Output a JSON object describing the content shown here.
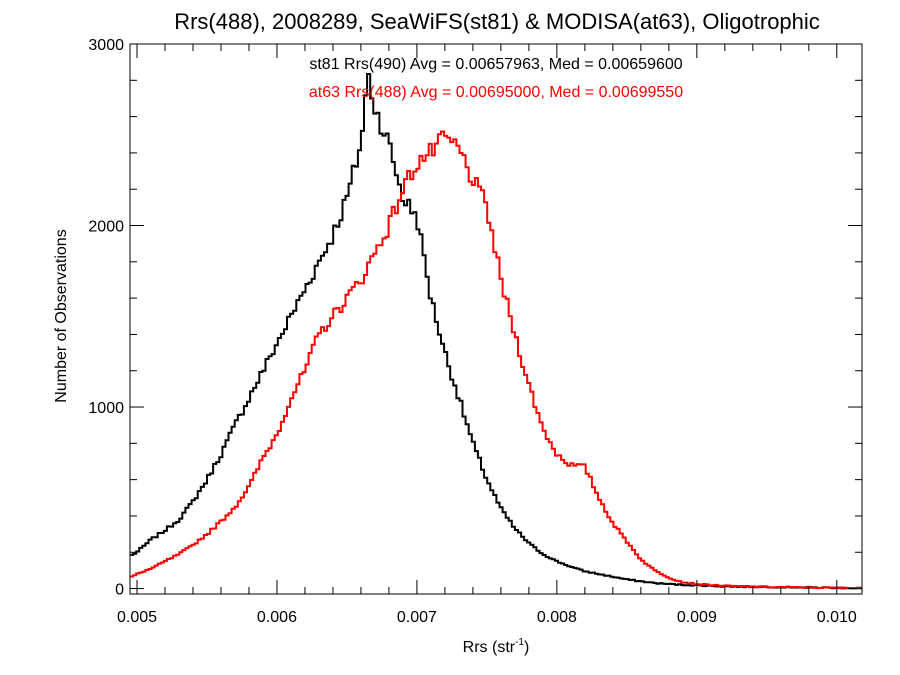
{
  "chart_data": {
    "type": "histogram-step",
    "title": "Rrs(488), 2008289, SeaWiFS(st81) & MODISA(at63), Oligotrophic",
    "xlabel_base": "Rrs (str",
    "xlabel_sup": "-1",
    "xlabel_close": ")",
    "ylabel": "Number of Observations",
    "xlim": [
      0.00495,
      0.01018
    ],
    "ylim": [
      -30,
      3000
    ],
    "xticks": [
      0.005,
      0.006,
      0.007,
      0.008,
      0.009,
      0.01
    ],
    "xtick_labels": [
      "0.005",
      "0.006",
      "0.007",
      "0.008",
      "0.009",
      "0.010"
    ],
    "yticks": [
      0,
      1000,
      2000,
      3000
    ],
    "ytick_labels": [
      "0",
      "1000",
      "2000",
      "3000"
    ],
    "x_minor_step": 0.0002,
    "y_minor_step": 200,
    "grid": false,
    "legend_placement": "top-center",
    "annotations": [
      {
        "text": "st81 Rrs(490) Avg = 0.00657963, Med = 0.00659600",
        "color": "#000000"
      },
      {
        "text": "at63 Rrs(488) Avg = 0.00695000, Med = 0.00699550",
        "color": "#ff0000"
      }
    ],
    "series": [
      {
        "color": "#000000",
        "points": [
          [
            0.00495,
            180
          ],
          [
            0.005,
            200
          ],
          [
            0.0051,
            270
          ],
          [
            0.0052,
            320
          ],
          [
            0.0053,
            380
          ],
          [
            0.0054,
            480
          ],
          [
            0.0055,
            600
          ],
          [
            0.0056,
            740
          ],
          [
            0.0057,
            900
          ],
          [
            0.0058,
            1050
          ],
          [
            0.0059,
            1200
          ],
          [
            0.006,
            1350
          ],
          [
            0.0061,
            1500
          ],
          [
            0.0062,
            1650
          ],
          [
            0.0063,
            1800
          ],
          [
            0.0064,
            1950
          ],
          [
            0.0065,
            2150
          ],
          [
            0.0066,
            2450
          ],
          [
            0.00665,
            2830
          ],
          [
            0.0067,
            2650
          ],
          [
            0.0068,
            2450
          ],
          [
            0.0069,
            2150
          ],
          [
            0.007,
            2050
          ],
          [
            0.0071,
            1600
          ],
          [
            0.0072,
            1300
          ],
          [
            0.0073,
            1050
          ],
          [
            0.0074,
            800
          ],
          [
            0.0075,
            600
          ],
          [
            0.0076,
            440
          ],
          [
            0.0077,
            330
          ],
          [
            0.0078,
            250
          ],
          [
            0.0079,
            190
          ],
          [
            0.008,
            150
          ],
          [
            0.0081,
            120
          ],
          [
            0.0082,
            95
          ],
          [
            0.0083,
            80
          ],
          [
            0.0084,
            65
          ],
          [
            0.0085,
            50
          ],
          [
            0.0086,
            40
          ],
          [
            0.0087,
            30
          ],
          [
            0.0088,
            25
          ],
          [
            0.0089,
            20
          ],
          [
            0.009,
            18
          ],
          [
            0.0092,
            12
          ],
          [
            0.0094,
            10
          ],
          [
            0.0096,
            8
          ],
          [
            0.0098,
            6
          ],
          [
            0.01,
            4
          ],
          [
            0.01018,
            3
          ]
        ]
      },
      {
        "color": "#ff0000",
        "points": [
          [
            0.00495,
            60
          ],
          [
            0.005,
            80
          ],
          [
            0.0051,
            110
          ],
          [
            0.0052,
            150
          ],
          [
            0.0053,
            190
          ],
          [
            0.0054,
            240
          ],
          [
            0.0055,
            300
          ],
          [
            0.0056,
            370
          ],
          [
            0.0057,
            450
          ],
          [
            0.0058,
            560
          ],
          [
            0.0059,
            720
          ],
          [
            0.006,
            850
          ],
          [
            0.0061,
            1050
          ],
          [
            0.0062,
            1200
          ],
          [
            0.0063,
            1400
          ],
          [
            0.0064,
            1500
          ],
          [
            0.0065,
            1600
          ],
          [
            0.0066,
            1700
          ],
          [
            0.0067,
            1850
          ],
          [
            0.0068,
            2000
          ],
          [
            0.0069,
            2200
          ],
          [
            0.007,
            2350
          ],
          [
            0.0071,
            2400
          ],
          [
            0.0072,
            2480
          ],
          [
            0.0073,
            2420
          ],
          [
            0.0074,
            2250
          ],
          [
            0.0075,
            2100
          ],
          [
            0.0076,
            1700
          ],
          [
            0.0077,
            1400
          ],
          [
            0.0078,
            1120
          ],
          [
            0.0079,
            880
          ],
          [
            0.008,
            740
          ],
          [
            0.0081,
            680
          ],
          [
            0.0082,
            670
          ],
          [
            0.0083,
            500
          ],
          [
            0.0084,
            360
          ],
          [
            0.0085,
            260
          ],
          [
            0.0086,
            160
          ],
          [
            0.0087,
            100
          ],
          [
            0.0088,
            60
          ],
          [
            0.0089,
            35
          ],
          [
            0.009,
            25
          ],
          [
            0.0092,
            15
          ],
          [
            0.0094,
            10
          ],
          [
            0.0096,
            8
          ],
          [
            0.0098,
            5
          ],
          [
            0.01,
            4
          ],
          [
            0.01018,
            3
          ]
        ]
      }
    ]
  }
}
